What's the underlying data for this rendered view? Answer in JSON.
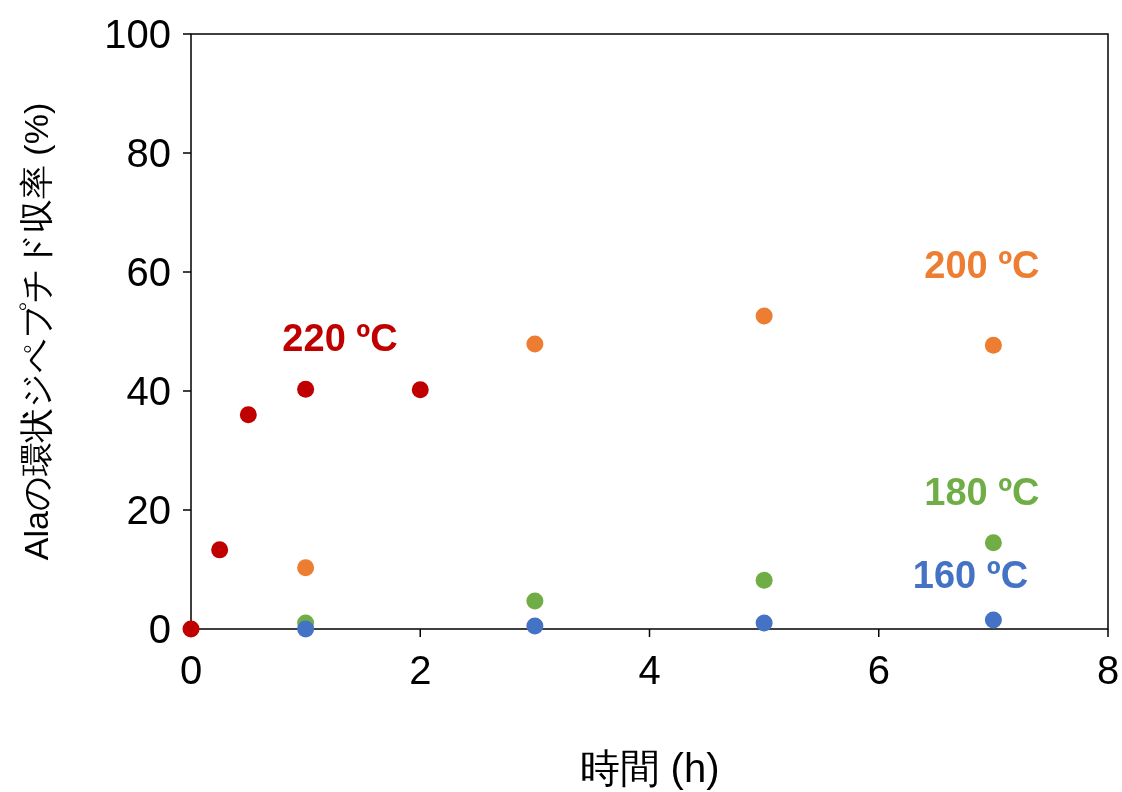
{
  "chart_data": {
    "type": "scatter",
    "xlabel": "時間 (h)",
    "ylabel": "Alaの環状ジペプチド収率 (%)",
    "xlim": [
      0,
      8
    ],
    "xticks": [
      0,
      2,
      4,
      6,
      8
    ],
    "ylim": [
      0,
      100
    ],
    "yticks": [
      0,
      20,
      40,
      60,
      80,
      100
    ],
    "grid": false,
    "marker": "circle",
    "series": [
      {
        "name": "220 ºC",
        "color": "#c00000",
        "x": [
          0,
          0.25,
          0.5,
          1,
          2
        ],
        "values": [
          0,
          13.3,
          36.0,
          40.3,
          40.2
        ]
      },
      {
        "name": "200 ºC",
        "color": "#ed7d31",
        "x": [
          1,
          3,
          5,
          7
        ],
        "values": [
          10.3,
          47.9,
          52.6,
          47.7
        ]
      },
      {
        "name": "180 ºC",
        "color": "#70ad47",
        "x": [
          1,
          3,
          5,
          7
        ],
        "values": [
          1.0,
          4.7,
          8.2,
          14.5
        ]
      },
      {
        "name": "160 ºC",
        "color": "#4472c4",
        "x": [
          1,
          3,
          5,
          7
        ],
        "values": [
          0,
          0.5,
          1.0,
          1.5
        ]
      }
    ]
  }
}
